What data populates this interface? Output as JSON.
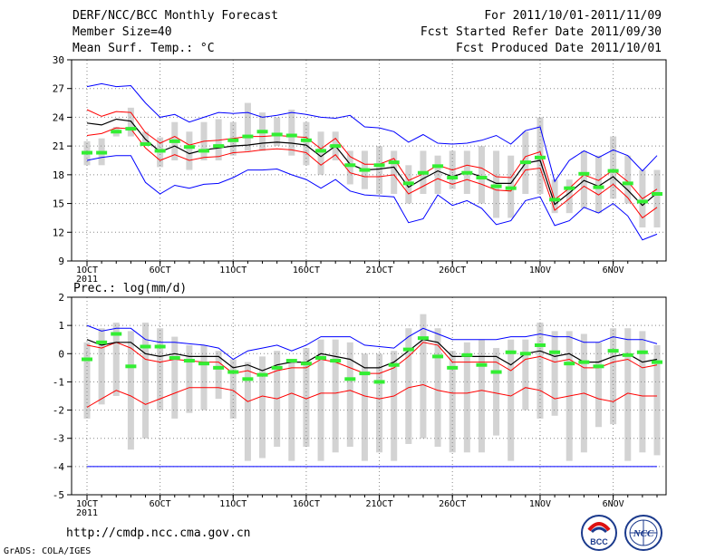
{
  "header": {
    "title": "DERF/NCC/BCC Monthly Forecast",
    "member_size": "Member Size=40",
    "variable": "Mean Surf. Temp.: °C",
    "period": "For 2011/10/01-2011/11/09",
    "started": "Fcst Started Refer Date 2011/09/30",
    "produced": "Fcst Produced Date 2011/10/01"
  },
  "footer": {
    "url": "http://cmdp.ncc.cma.gov.cn",
    "credit": "GrADS: COLA/IGES",
    "logo_bcc": "BCC",
    "logo_ncc": "NCC"
  },
  "colors": {
    "mean": "#000000",
    "spread": "#ff0000",
    "extreme": "#0000ff",
    "box": "#d3d3d3",
    "observed": "#33ee33",
    "grid": "#888888"
  },
  "chart_data": [
    {
      "type": "line",
      "title": "Mean Surf. Temp.: °C",
      "ylim": [
        9,
        30
      ],
      "yticks": [
        9,
        12,
        15,
        18,
        21,
        24,
        27,
        30
      ],
      "x_range_days": [
        0,
        39
      ],
      "xticks": [
        {
          "day": 0,
          "label": "1OCT",
          "sub": "2011"
        },
        {
          "day": 5,
          "label": "6OCT"
        },
        {
          "day": 10,
          "label": "11OCT"
        },
        {
          "day": 15,
          "label": "16OCT"
        },
        {
          "day": 20,
          "label": "21OCT"
        },
        {
          "day": 25,
          "label": "26OCT"
        },
        {
          "day": 31,
          "label": "1NOV"
        },
        {
          "day": 36,
          "label": "6NOV"
        }
      ],
      "series": [
        {
          "name": "max",
          "values": [
            27.2,
            27.5,
            27.2,
            27.3,
            25.5,
            24.0,
            24.3,
            23.5,
            24.0,
            24.5,
            24.4,
            24.5,
            24.0,
            24.2,
            24.5,
            24.3,
            24.0,
            23.9,
            24.2,
            23.0,
            22.9,
            22.5,
            21.4,
            22.2,
            21.3,
            21.2,
            21.3,
            21.6,
            22.1,
            21.2,
            22.6,
            23.0,
            17.3,
            19.5,
            20.5,
            19.8,
            20.6,
            20.0,
            18.4,
            20.0
          ]
        },
        {
          "name": "upper",
          "values": [
            24.8,
            24.1,
            24.6,
            24.5,
            22.4,
            21.3,
            22.0,
            21.1,
            21.5,
            21.6,
            21.8,
            22.0,
            22.0,
            22.1,
            22.0,
            21.9,
            20.7,
            21.8,
            19.9,
            19.1,
            19.1,
            19.7,
            17.4,
            18.1,
            19.0,
            18.5,
            19.0,
            18.7,
            17.8,
            17.7,
            19.9,
            20.4,
            15.4,
            16.6,
            18.0,
            17.4,
            18.5,
            17.3,
            15.5,
            16.5
          ]
        },
        {
          "name": "mean",
          "values": [
            23.4,
            23.2,
            23.8,
            23.6,
            21.7,
            20.4,
            21.0,
            20.2,
            20.6,
            20.8,
            21.0,
            21.1,
            21.3,
            21.4,
            21.3,
            21.1,
            19.9,
            21.0,
            19.1,
            18.5,
            18.6,
            18.8,
            16.7,
            17.6,
            18.4,
            17.8,
            18.3,
            17.8,
            17.1,
            17.1,
            19.2,
            19.5,
            14.9,
            16.1,
            17.4,
            16.8,
            17.8,
            16.4,
            14.8,
            16.1
          ]
        },
        {
          "name": "lower",
          "values": [
            22.1,
            22.3,
            22.9,
            22.8,
            20.8,
            19.5,
            20.1,
            19.5,
            19.8,
            19.9,
            20.3,
            20.4,
            20.6,
            20.7,
            20.6,
            20.3,
            19.0,
            20.1,
            18.2,
            17.8,
            17.8,
            18.0,
            16.0,
            16.8,
            17.6,
            17.0,
            17.5,
            17.0,
            16.4,
            16.3,
            18.5,
            18.7,
            14.3,
            15.5,
            16.8,
            15.9,
            17.0,
            15.6,
            13.5,
            14.6
          ]
        },
        {
          "name": "min",
          "values": [
            19.5,
            19.8,
            20.0,
            20.0,
            17.2,
            16.0,
            16.9,
            16.6,
            17.0,
            17.1,
            17.7,
            18.5,
            18.5,
            18.6,
            18.0,
            17.5,
            16.6,
            17.5,
            16.3,
            15.9,
            15.8,
            15.7,
            13.0,
            13.4,
            15.9,
            14.8,
            15.3,
            14.5,
            12.8,
            13.2,
            15.3,
            15.7,
            12.7,
            13.2,
            14.6,
            14.0,
            15.0,
            13.7,
            11.2,
            11.8
          ]
        }
      ],
      "box_ranges": [
        [
          19.0,
          21.5
        ],
        [
          19.0,
          21.8
        ],
        [
          22.0,
          23.0
        ],
        [
          22.0,
          25.0
        ],
        [
          21.0,
          22.5
        ],
        [
          18.8,
          21.9
        ],
        [
          19.5,
          23.5
        ],
        [
          18.5,
          22.5
        ],
        [
          19.5,
          23.5
        ],
        [
          19.5,
          23.8
        ],
        [
          20.0,
          23.5
        ],
        [
          20.5,
          25.5
        ],
        [
          20.5,
          24.5
        ],
        [
          21.0,
          24.0
        ],
        [
          20.0,
          24.8
        ],
        [
          19.0,
          23.5
        ],
        [
          18.0,
          22.5
        ],
        [
          19.5,
          22.5
        ],
        [
          17.0,
          20.5
        ],
        [
          16.5,
          20.5
        ],
        [
          16.0,
          21.0
        ],
        [
          16.0,
          20.5
        ],
        [
          15.0,
          19.0
        ],
        [
          16.0,
          20.5
        ],
        [
          16.0,
          20.0
        ],
        [
          16.5,
          20.5
        ],
        [
          16.0,
          20.5
        ],
        [
          15.0,
          21.0
        ],
        [
          13.5,
          20.5
        ],
        [
          13.5,
          20.0
        ],
        [
          16.0,
          22.5
        ],
        [
          16.0,
          24.0
        ],
        [
          14.0,
          17.5
        ],
        [
          14.0,
          17.5
        ],
        [
          14.5,
          20.5
        ],
        [
          14.0,
          20.0
        ],
        [
          15.5,
          22.0
        ],
        [
          15.0,
          20.0
        ],
        [
          12.5,
          18.5
        ],
        [
          12.5,
          18.5
        ]
      ],
      "observed": [
        20.3,
        20.3,
        22.5,
        22.8,
        21.2,
        20.5,
        21.5,
        20.9,
        20.5,
        21.0,
        21.6,
        22.0,
        22.5,
        22.2,
        22.1,
        21.6,
        20.5,
        21.0,
        19.0,
        18.5,
        19.0,
        19.3,
        17.1,
        18.2,
        18.9,
        17.7,
        18.2,
        17.7,
        16.8,
        16.6,
        19.3,
        19.8,
        15.4,
        16.6,
        18.1,
        16.7,
        18.4,
        17.1,
        15.2,
        16.0
      ]
    },
    {
      "type": "line",
      "title": "Prec.: log(mm/d)",
      "ylim": [
        -5,
        2
      ],
      "yticks": [
        -5,
        -4,
        -3,
        -2,
        -1,
        0,
        1,
        2
      ],
      "x_range_days": [
        0,
        39
      ],
      "xticks": [
        {
          "day": 0,
          "label": "1OCT",
          "sub": "2011"
        },
        {
          "day": 5,
          "label": "6OCT"
        },
        {
          "day": 10,
          "label": "11OCT"
        },
        {
          "day": 15,
          "label": "16OCT"
        },
        {
          "day": 20,
          "label": "21OCT"
        },
        {
          "day": 25,
          "label": "26OCT"
        },
        {
          "day": 31,
          "label": "1NOV"
        },
        {
          "day": 36,
          "label": "6NOV"
        }
      ],
      "series": [
        {
          "name": "max",
          "values": [
            1.0,
            0.8,
            0.9,
            0.9,
            0.5,
            0.4,
            0.4,
            0.35,
            0.3,
            0.2,
            -0.2,
            0.1,
            0.2,
            0.3,
            0.1,
            0.3,
            0.6,
            0.6,
            0.6,
            0.3,
            0.25,
            0.2,
            0.6,
            0.9,
            0.7,
            0.5,
            0.5,
            0.5,
            0.5,
            0.6,
            0.6,
            0.7,
            0.6,
            0.6,
            0.4,
            0.4,
            0.6,
            0.5,
            0.5,
            0.35
          ]
        },
        {
          "name": "upper",
          "values": [
            0.3,
            0.2,
            0.4,
            0.2,
            -0.2,
            -0.3,
            -0.2,
            -0.25,
            -0.3,
            -0.3,
            -0.7,
            -0.6,
            -0.8,
            -0.6,
            -0.5,
            -0.5,
            -0.2,
            -0.3,
            -0.5,
            -0.7,
            -0.7,
            -0.5,
            -0.1,
            0.4,
            0.3,
            -0.3,
            -0.3,
            -0.3,
            -0.3,
            -0.6,
            -0.2,
            -0.1,
            -0.3,
            -0.2,
            -0.5,
            -0.5,
            -0.3,
            -0.2,
            -0.5,
            -0.4
          ]
        },
        {
          "name": "mean",
          "values": [
            0.5,
            0.3,
            0.4,
            0.4,
            0.0,
            -0.1,
            0.0,
            -0.1,
            -0.1,
            -0.1,
            -0.5,
            -0.4,
            -0.6,
            -0.4,
            -0.3,
            -0.3,
            0.0,
            -0.1,
            -0.2,
            -0.5,
            -0.5,
            -0.3,
            0.1,
            0.5,
            0.4,
            -0.1,
            -0.1,
            -0.1,
            -0.1,
            -0.4,
            0.0,
            0.1,
            -0.1,
            0.0,
            -0.3,
            -0.3,
            -0.1,
            0.0,
            -0.3,
            -0.2
          ]
        },
        {
          "name": "lower",
          "values": [
            -1.9,
            -1.6,
            -1.3,
            -1.5,
            -1.8,
            -1.6,
            -1.4,
            -1.2,
            -1.2,
            -1.2,
            -1.3,
            -1.7,
            -1.5,
            -1.6,
            -1.4,
            -1.6,
            -1.4,
            -1.4,
            -1.3,
            -1.5,
            -1.6,
            -1.5,
            -1.2,
            -1.1,
            -1.3,
            -1.4,
            -1.4,
            -1.3,
            -1.4,
            -1.5,
            -1.2,
            -1.3,
            -1.6,
            -1.5,
            -1.4,
            -1.6,
            -1.7,
            -1.4,
            -1.5,
            -1.5
          ]
        },
        {
          "name": "min",
          "values": [
            -4,
            -4,
            -4,
            -4,
            -4,
            -4,
            -4,
            -4,
            -4,
            -4,
            -4,
            -4,
            -4,
            -4,
            -4,
            -4,
            -4,
            -4,
            -4,
            -4,
            -4,
            -4,
            -4,
            -4,
            -4,
            -4,
            -4,
            -4,
            -4,
            -4,
            -4,
            -4,
            -4,
            -4,
            -4,
            -4,
            -4,
            -4,
            -4,
            -4
          ]
        }
      ],
      "box_ranges": [
        [
          -2.3,
          0.4
        ],
        [
          -1.8,
          0.9
        ],
        [
          -1.5,
          1.1
        ],
        [
          -3.4,
          0.8
        ],
        [
          -3.0,
          1.1
        ],
        [
          -2.0,
          0.9
        ],
        [
          -2.3,
          0.6
        ],
        [
          -2.1,
          0.3
        ],
        [
          -2.0,
          0.3
        ],
        [
          -1.6,
          0.1
        ],
        [
          -2.3,
          -0.2
        ],
        [
          -3.8,
          -0.3
        ],
        [
          -3.7,
          -0.1
        ],
        [
          -3.3,
          0.1
        ],
        [
          -3.8,
          -0.2
        ],
        [
          -3.3,
          0.2
        ],
        [
          -3.8,
          0.5
        ],
        [
          -3.5,
          0.5
        ],
        [
          -3.3,
          0.4
        ],
        [
          -3.8,
          0.0
        ],
        [
          -3.5,
          0.0
        ],
        [
          -3.8,
          0.1
        ],
        [
          -3.2,
          0.9
        ],
        [
          -3.0,
          1.4
        ],
        [
          -3.3,
          0.9
        ],
        [
          -3.5,
          0.1
        ],
        [
          -3.5,
          0.4
        ],
        [
          -3.5,
          0.5
        ],
        [
          -2.9,
          0.2
        ],
        [
          -3.8,
          0.5
        ],
        [
          -2.0,
          0.5
        ],
        [
          -2.3,
          1.1
        ],
        [
          -2.2,
          0.8
        ],
        [
          -3.8,
          0.8
        ],
        [
          -3.5,
          0.7
        ],
        [
          -2.6,
          0.4
        ],
        [
          -2.5,
          0.9
        ],
        [
          -3.8,
          0.9
        ],
        [
          -3.5,
          0.8
        ],
        [
          -3.6,
          0.3
        ]
      ],
      "observed": [
        -0.2,
        0.4,
        0.7,
        -0.45,
        0.25,
        0.25,
        -0.15,
        -0.25,
        -0.35,
        -0.5,
        -0.65,
        -0.9,
        -0.75,
        -0.5,
        -0.25,
        -0.35,
        -0.15,
        -0.25,
        -0.9,
        -0.7,
        -1.0,
        -0.4,
        0.15,
        0.55,
        -0.1,
        -0.5,
        -0.05,
        -0.4,
        -0.65,
        0.05,
        0.0,
        0.3,
        0.05,
        -0.35,
        -0.3,
        -0.45,
        0.1,
        -0.05,
        0.05,
        -0.3
      ]
    }
  ]
}
